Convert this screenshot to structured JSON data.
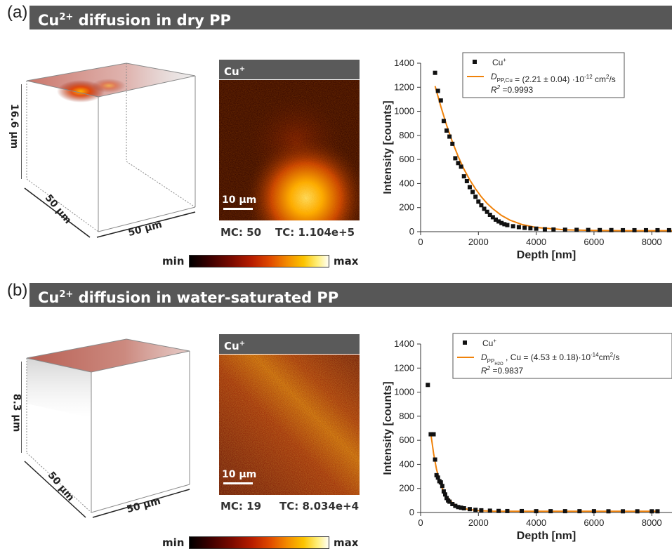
{
  "panels": [
    {
      "letter": "(a)",
      "title_pre": "Cu",
      "title_sup": "2+",
      "title_post": " diffusion in dry PP",
      "cube": {
        "height_label": "16.6 µm",
        "depth_label": "50 µm",
        "width_label": "50 µm"
      },
      "map": {
        "header": "Cu",
        "header_sup": "+",
        "scale_label": "10 µm",
        "mc": "MC: 50",
        "tc": "TC: 1.104e+5"
      },
      "colorbar": {
        "min": "min",
        "max": "max"
      }
    },
    {
      "letter": "(b)",
      "title_pre": "Cu",
      "title_sup": "2+",
      "title_post": " diffusion in water-saturated PP",
      "cube": {
        "height_label": "8.3 µm",
        "depth_label": "50 µm",
        "width_label": "50 µm"
      },
      "map": {
        "header": "Cu",
        "header_sup": "+",
        "scale_label": "10 µm",
        "mc": "MC: 19",
        "tc": "TC: 8.034e+4"
      },
      "colorbar": {
        "min": "min",
        "max": "max"
      }
    }
  ],
  "colors": {
    "banner": "#575757",
    "fit": "#f0820a",
    "points": "#111111"
  },
  "chart_data": [
    {
      "type": "scatter",
      "xlabel": "Depth [nm]",
      "ylabel": "Intensity [counts]",
      "xlim": [
        0,
        8700
      ],
      "ylim": [
        0,
        1400
      ],
      "xticks": [
        0,
        2000,
        4000,
        6000,
        8000
      ],
      "yticks": [
        0,
        200,
        400,
        600,
        800,
        1000,
        1200,
        1400
      ],
      "legend": {
        "marker_label": "Cu",
        "marker_sup": "+",
        "fit_sym": "D",
        "fit_sub": "PP,Cu",
        "fit_value": " = (2.21 ± 0.04) ·10",
        "fit_exp": "-12",
        "fit_unit": " cm",
        "fit_unit_exp": "2",
        "fit_unit_tail": "/s",
        "r2_label": "R",
        "r2_sup": "2",
        "r2_value": " =0.9993"
      },
      "series": [
        {
          "name": "Cu+",
          "kind": "points",
          "x": [
            500,
            600,
            700,
            800,
            900,
            1000,
            1100,
            1200,
            1300,
            1400,
            1500,
            1600,
            1700,
            1800,
            1900,
            2000,
            2100,
            2200,
            2300,
            2400,
            2500,
            2600,
            2700,
            2800,
            2900,
            3000,
            3200,
            3400,
            3600,
            3800,
            4000,
            4300,
            4600,
            5000,
            5400,
            5800,
            6200,
            6600,
            7000,
            7400,
            7800,
            8200,
            8600
          ],
          "y": [
            1320,
            1170,
            1090,
            920,
            840,
            790,
            730,
            610,
            570,
            540,
            460,
            420,
            370,
            330,
            290,
            250,
            220,
            190,
            165,
            140,
            120,
            100,
            85,
            72,
            62,
            55,
            45,
            38,
            32,
            28,
            25,
            20,
            18,
            16,
            15,
            14,
            13,
            13,
            12,
            12,
            12,
            12,
            12
          ]
        },
        {
          "name": "fit",
          "kind": "line",
          "x": [
            500,
            700,
            900,
            1100,
            1300,
            1500,
            1700,
            1900,
            2100,
            2300,
            2500,
            2800,
            3100,
            3500,
            4000,
            5000,
            6000,
            7000,
            8700
          ],
          "y": [
            1210,
            1040,
            885,
            745,
            625,
            520,
            430,
            355,
            290,
            235,
            190,
            135,
            95,
            60,
            35,
            15,
            10,
            8,
            8
          ]
        }
      ]
    },
    {
      "type": "scatter",
      "xlabel": "Depth [nm]",
      "ylabel": "Intensity [counts]",
      "xlim": [
        0,
        8700
      ],
      "ylim": [
        0,
        1400
      ],
      "xticks": [
        0,
        2000,
        4000,
        6000,
        8000
      ],
      "yticks": [
        0,
        200,
        400,
        600,
        800,
        1000,
        1200,
        1400
      ],
      "legend": {
        "marker_label": "Cu",
        "marker_sup": "+",
        "fit_sym": "D",
        "fit_sub": "PP",
        "fit_sub2": "H2O",
        "fit_sub_tail": " , Cu",
        "fit_value": " = (4.53 ± 0.18)·10",
        "fit_exp": "-14",
        "fit_unit": "cm",
        "fit_unit_exp": "2",
        "fit_unit_tail": "/s",
        "r2_label": "R",
        "r2_sup": "2",
        "r2_value": " =0.9837"
      },
      "series": [
        {
          "name": "Cu+",
          "kind": "points",
          "x": [
            250,
            350,
            450,
            500,
            550,
            600,
            650,
            700,
            750,
            800,
            850,
            900,
            950,
            1000,
            1100,
            1200,
            1300,
            1400,
            1500,
            1700,
            1900,
            2100,
            2400,
            2700,
            3000,
            3500,
            4000,
            4500,
            5000,
            5500,
            6000,
            6500,
            7000,
            7500,
            8000,
            8200
          ],
          "y": [
            1060,
            650,
            650,
            440,
            310,
            290,
            260,
            250,
            220,
            175,
            150,
            120,
            100,
            90,
            70,
            55,
            45,
            40,
            35,
            28,
            22,
            18,
            15,
            13,
            12,
            12,
            11,
            11,
            11,
            11,
            11,
            10,
            10,
            10,
            10,
            10
          ]
        },
        {
          "name": "fit",
          "kind": "line",
          "x": [
            350,
            450,
            550,
            650,
            750,
            900,
            1100,
            1300,
            1600,
            2000,
            2500,
            3500,
            5000,
            6500,
            8200
          ],
          "y": [
            660,
            490,
            360,
            270,
            200,
            135,
            80,
            50,
            28,
            15,
            11,
            10,
            10,
            10,
            10
          ]
        }
      ]
    }
  ]
}
